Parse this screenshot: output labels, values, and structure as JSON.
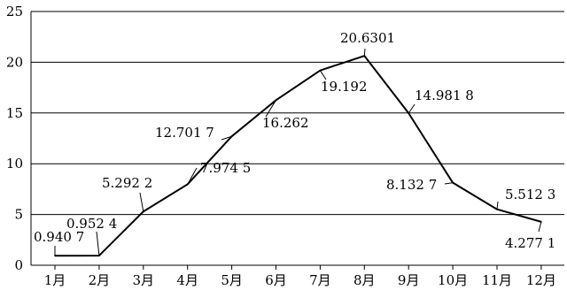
{
  "chart_data": {
    "type": "line",
    "categories": [
      "1月",
      "2月",
      "3月",
      "4月",
      "5月",
      "6月",
      "7月",
      "8月",
      "9月",
      "10月",
      "11月",
      "12月"
    ],
    "series": [
      {
        "values": [
          0.9407,
          0.9524,
          5.2922,
          7.9745,
          12.7017,
          16.262,
          19.192,
          20.6301,
          14.9818,
          8.1327,
          5.5123,
          4.2771
        ],
        "labels": [
          "0.940 7",
          "0.952 4",
          "5.292 2",
          "7.974 5",
          "12.701 7",
          "16.262",
          "19.192",
          "20.6301",
          "14.981 8",
          "8.132 7",
          "5.512 3",
          "4.277 1"
        ]
      }
    ],
    "y_ticks": [
      "0",
      "5",
      "10",
      "15",
      "20",
      "25"
    ],
    "ylim": [
      0,
      25
    ],
    "grid": "horizontal",
    "title": "",
    "xlabel": "",
    "ylabel": "",
    "colors": {
      "line": "#000000",
      "grid": "#000000",
      "background": "#ffffff"
    }
  }
}
